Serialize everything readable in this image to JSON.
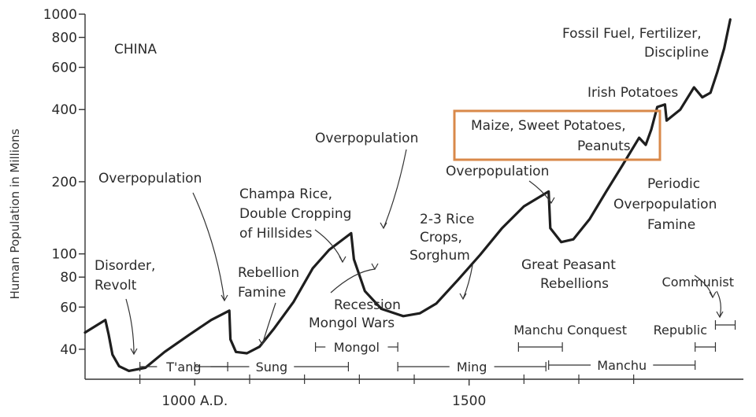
{
  "chart_data": {
    "type": "line",
    "title": "CHINA",
    "xlabel": "",
    "ylabel": "Human Population in Millions",
    "y_scale": "log",
    "ylim": [
      30,
      1000
    ],
    "xlim": [
      800,
      2000
    ],
    "y_ticks": [
      40,
      60,
      80,
      100,
      200,
      400,
      600,
      800,
      1000
    ],
    "x_ticks": [
      {
        "value": 1000,
        "label": "1000 A.D."
      },
      {
        "value": 1500,
        "label": "1500"
      }
    ],
    "x_minor_ticks": [
      900,
      1100,
      1200,
      1300,
      1400,
      1600,
      1700,
      1800
    ],
    "grid": false,
    "series": [
      {
        "points": [
          [
            800,
            47
          ],
          [
            837,
            53
          ],
          [
            843,
            46
          ],
          [
            850,
            38
          ],
          [
            862,
            34
          ],
          [
            880,
            32.5
          ],
          [
            910,
            33.5
          ],
          [
            945,
            39
          ],
          [
            990,
            46
          ],
          [
            1030,
            53
          ],
          [
            1063,
            58
          ],
          [
            1065,
            44
          ],
          [
            1075,
            39
          ],
          [
            1095,
            38.5
          ],
          [
            1118,
            41
          ],
          [
            1145,
            49
          ],
          [
            1180,
            63
          ],
          [
            1215,
            87
          ],
          [
            1245,
            104
          ],
          [
            1285,
            122
          ],
          [
            1290,
            95
          ],
          [
            1310,
            70
          ],
          [
            1340,
            59
          ],
          [
            1380,
            55
          ],
          [
            1410,
            56.5
          ],
          [
            1440,
            62
          ],
          [
            1480,
            78
          ],
          [
            1520,
            99
          ],
          [
            1560,
            128
          ],
          [
            1600,
            158
          ],
          [
            1645,
            182
          ],
          [
            1648,
            128
          ],
          [
            1668,
            112
          ],
          [
            1690,
            115
          ],
          [
            1720,
            140
          ],
          [
            1750,
            182
          ],
          [
            1780,
            235
          ],
          [
            1810,
            305
          ],
          [
            1822,
            285
          ],
          [
            1832,
            330
          ],
          [
            1843,
            410
          ],
          [
            1857,
            420
          ],
          [
            1860,
            360
          ],
          [
            1885,
            400
          ],
          [
            1910,
            495
          ],
          [
            1925,
            450
          ],
          [
            1940,
            470
          ],
          [
            1952,
            570
          ],
          [
            1965,
            720
          ],
          [
            1976,
            950
          ]
        ]
      }
    ],
    "annotations": [
      "Disorder,",
      "Revolt",
      "Overpopulation",
      "Rebellion",
      "Famine",
      "Champa Rice,",
      "Double Cropping",
      "of Hillsides",
      "Overpopulation",
      "Recession",
      "Mongol Wars",
      "2-3 Rice",
      "Crops,",
      "Sorghum",
      "Overpopulation",
      "Great Peasant",
      "Rebellions",
      "Maize, Sweet Potatoes,",
      "Peanuts",
      "Irish Potatoes",
      "Fossil Fuel, Fertilizer,",
      "Discipline",
      "Periodic",
      "Overpopulation",
      "Famine",
      "Communist"
    ],
    "periods": [
      {
        "label": "T'ang",
        "from": 900,
        "to": 1060
      },
      {
        "label": "Sung",
        "from": 1000,
        "to": 1280
      },
      {
        "label": "Mongol",
        "from": 1220,
        "to": 1370
      },
      {
        "label": "Ming",
        "from": 1370,
        "to": 1640
      },
      {
        "label": "Manchu Conquest",
        "from": 1590,
        "to": 1670
      },
      {
        "label": "Manchu",
        "from": 1645,
        "to": 1912
      },
      {
        "label": "Republic",
        "from": 1912,
        "to": 1949
      },
      {
        "label": "Communist",
        "from": 1949,
        "to": 1985
      }
    ],
    "highlight": {
      "label": "Maize, Sweet Potatoes, Peanuts",
      "color": "#d9894a"
    }
  },
  "colors": {
    "line": "#1e1e1e",
    "text": "#2b2b2b",
    "highlight": "#d9894a"
  }
}
